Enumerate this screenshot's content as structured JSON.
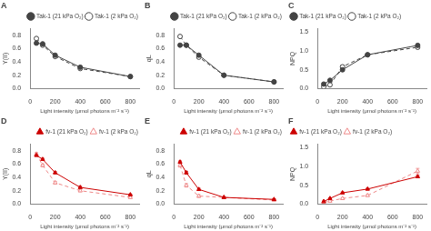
{
  "chart_data": [
    {
      "type": "line",
      "title": "A",
      "xlabel": "Light intensity (μmol photons m⁻² s⁻¹)",
      "ylabel": "Y(II)",
      "x": [
        50,
        100,
        200,
        400,
        800
      ],
      "xlim": [
        0,
        870
      ],
      "xticks": [
        0,
        200,
        400,
        600,
        800
      ],
      "ylim": [
        0.0,
        0.9
      ],
      "yticks": [
        {
          "value": 0.0,
          "label": "0.0"
        },
        0.2,
        0.4,
        0.6,
        0.8
      ],
      "grid": false,
      "legend": "upper right",
      "series": [
        {
          "name": "Tak-1 (21 kPa O₂)",
          "color": "#444444",
          "marker": "circle",
          "line_style": "solid",
          "values": [
            0.68,
            0.67,
            0.5,
            0.32,
            0.18
          ],
          "yerr": [
            0.015,
            0.015,
            0.015,
            0.015,
            0.01
          ]
        },
        {
          "name": "Tak-1 (2 kPa O₂)",
          "color": "#444444",
          "marker": "open_circle",
          "line_style": "dashed",
          "values": [
            0.75,
            0.65,
            0.48,
            0.3,
            0.18
          ],
          "yerr": [
            0.015,
            0.015,
            0.015,
            0.015,
            0.01
          ]
        }
      ]
    },
    {
      "type": "line",
      "title": "B",
      "xlabel": "Light intensity (μmol photons m⁻² s⁻¹)",
      "ylabel": "qL",
      "x": [
        50,
        100,
        200,
        400,
        800
      ],
      "xlim": [
        0,
        870
      ],
      "xticks": [
        0,
        200,
        400,
        600,
        800
      ],
      "ylim": [
        0.0,
        0.9
      ],
      "yticks": [
        {
          "value": 0.0,
          "label": "0.0"
        },
        0.2,
        0.4,
        0.6,
        0.8
      ],
      "grid": false,
      "legend": "upper right",
      "series": [
        {
          "name": "Tak-1 (21 kPa O₂)",
          "color": "#444444",
          "marker": "circle",
          "line_style": "solid",
          "values": [
            0.65,
            0.65,
            0.5,
            0.2,
            0.1
          ],
          "yerr": [
            0.015,
            0.015,
            0.015,
            0.01,
            0.01
          ]
        },
        {
          "name": "Tak-1 (2 kPa O₂)",
          "color": "#444444",
          "marker": "open_circle",
          "line_style": "dashed",
          "values": [
            0.78,
            0.65,
            0.47,
            0.2,
            0.1
          ],
          "yerr": [
            0.015,
            0.02,
            0.015,
            0.01,
            0.01
          ]
        }
      ]
    },
    {
      "type": "line",
      "title": "C",
      "xlabel": "Light intensity (μmol photons m⁻² s⁻¹)",
      "ylabel": "NPQ",
      "x": [
        50,
        100,
        200,
        400,
        800
      ],
      "xlim": [
        0,
        870
      ],
      "xticks": [
        0,
        200,
        400,
        600,
        800
      ],
      "ylim": [
        0.0,
        1.6
      ],
      "yticks": [
        {
          "value": 0.0,
          "label": "0.0"
        },
        0.5,
        {
          "value": 1.0,
          "label": "1.0"
        },
        1.5
      ],
      "grid": false,
      "legend": "upper left",
      "series": [
        {
          "name": "Tak-1 (21 kPa O₂)",
          "color": "#444444",
          "marker": "circle",
          "line_style": "solid",
          "values": [
            0.12,
            0.22,
            0.5,
            0.9,
            1.15
          ],
          "yerr": [
            0.01,
            0.02,
            0.03,
            0.03,
            0.04
          ]
        },
        {
          "name": "Tak-1 (2 kPa O₂)",
          "color": "#444444",
          "marker": "open_circle",
          "line_style": "dashed",
          "values": [
            0.05,
            0.1,
            0.58,
            0.9,
            1.1
          ],
          "yerr": [
            0.01,
            0.015,
            0.04,
            0.03,
            0.04
          ]
        }
      ]
    },
    {
      "type": "line",
      "title": "D",
      "xlabel": "Light intensity (μmol photons m⁻² s⁻¹)",
      "ylabel": "Y(II)",
      "x": [
        50,
        100,
        200,
        400,
        800
      ],
      "xlim": [
        0,
        870
      ],
      "xticks": [
        0,
        200,
        400,
        600,
        800
      ],
      "ylim": [
        0.0,
        0.9
      ],
      "yticks": [
        {
          "value": 0.0,
          "label": "0.0"
        },
        0.2,
        0.4,
        0.6,
        0.8
      ],
      "grid": false,
      "legend": "upper right",
      "series": [
        {
          "name": "fv-1 (21 kPa O₂)",
          "color": "#cc0000",
          "marker": "triangle",
          "line_style": "solid",
          "values": [
            0.73,
            0.67,
            0.47,
            0.25,
            0.14
          ],
          "yerr": [
            0.015,
            0.015,
            0.015,
            0.015,
            0.01
          ]
        },
        {
          "name": "fv-1 (2 kPa O₂)",
          "color": "#ee8888",
          "marker": "open_triangle",
          "line_style": "dashed",
          "values": [
            0.75,
            0.58,
            0.32,
            0.2,
            0.1
          ],
          "yerr": [
            0.02,
            0.02,
            0.02,
            0.015,
            0.01
          ]
        }
      ]
    },
    {
      "type": "line",
      "title": "E",
      "xlabel": "Light intensity (μmol photons m⁻² s⁻¹)",
      "ylabel": "qL",
      "x": [
        50,
        100,
        200,
        400,
        800
      ],
      "xlim": [
        0,
        870
      ],
      "xticks": [
        0,
        200,
        400,
        600,
        800
      ],
      "ylim": [
        0.0,
        0.9
      ],
      "yticks": [
        {
          "value": 0.0,
          "label": "0.0"
        },
        0.2,
        0.4,
        0.6,
        0.8
      ],
      "grid": false,
      "legend": "upper right",
      "series": [
        {
          "name": "fv-1 (21 kPa O₂)",
          "color": "#cc0000",
          "marker": "triangle",
          "line_style": "solid",
          "values": [
            0.63,
            0.47,
            0.22,
            0.1,
            0.07
          ],
          "yerr": [
            0.015,
            0.02,
            0.015,
            0.01,
            0.01
          ]
        },
        {
          "name": "fv-1 (2 kPa O₂)",
          "color": "#ee8888",
          "marker": "open_triangle",
          "line_style": "dashed",
          "values": [
            0.58,
            0.28,
            0.12,
            0.1,
            0.06
          ],
          "yerr": [
            0.025,
            0.025,
            0.02,
            0.01,
            0.01
          ]
        }
      ]
    },
    {
      "type": "line",
      "title": "F",
      "xlabel": "Light intensity (μmol photons m⁻² s⁻¹)",
      "ylabel": "NPQ",
      "x": [
        50,
        100,
        200,
        400,
        800
      ],
      "xlim": [
        0,
        870
      ],
      "xticks": [
        0,
        200,
        400,
        600,
        800
      ],
      "ylim": [
        0.0,
        1.6
      ],
      "yticks": [
        {
          "value": 0.0,
          "label": "0.0"
        },
        0.5,
        {
          "value": 1.0,
          "label": "1.0"
        },
        1.5
      ],
      "grid": false,
      "legend": "upper left",
      "series": [
        {
          "name": "fv-1 (21 kPa O₂)",
          "color": "#cc0000",
          "marker": "triangle",
          "line_style": "solid",
          "values": [
            0.07,
            0.15,
            0.3,
            0.4,
            0.73
          ],
          "yerr": [
            0.01,
            0.015,
            0.02,
            0.02,
            0.03
          ]
        },
        {
          "name": "fv-1 (2 kPa O₂)",
          "color": "#ee8888",
          "marker": "open_triangle",
          "line_style": "dashed",
          "values": [
            0.05,
            0.08,
            0.15,
            0.23,
            0.88
          ],
          "yerr": [
            0.01,
            0.01,
            0.015,
            0.02,
            0.07
          ]
        }
      ]
    }
  ]
}
